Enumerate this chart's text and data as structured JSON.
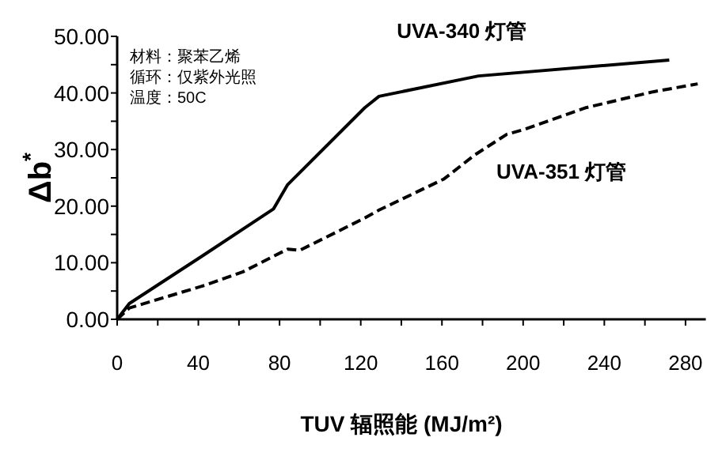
{
  "chart_data": {
    "type": "line",
    "xlabel": "TUV 辐照能 (MJ/m²)",
    "ylabel": "Δb$^{*}$",
    "annotations": [
      "材料：聚苯乙烯",
      "循环：仅紫外光照",
      "温度：50C"
    ],
    "xlim": [
      0,
      290
    ],
    "ylim": [
      0,
      50
    ],
    "xticks": [
      0,
      {
        "value": 20,
        "label": null
      },
      40,
      {
        "value": 60,
        "label": null
      },
      80,
      {
        "value": 100,
        "label": null
      },
      120,
      {
        "value": 140,
        "label": null
      },
      160,
      {
        "value": 180,
        "label": null
      },
      200,
      {
        "value": 220,
        "label": null
      },
      240,
      {
        "value": 260,
        "label": null
      },
      280
    ],
    "yticks": [
      {
        "value": 0,
        "label": "0.00"
      },
      {
        "value": 5,
        "label": null
      },
      {
        "value": 10,
        "label": "10.00"
      },
      {
        "value": 15,
        "label": null
      },
      {
        "value": 20,
        "label": "20.00"
      },
      {
        "value": 25,
        "label": null
      },
      {
        "value": 30,
        "label": "30.00"
      },
      {
        "value": 35,
        "label": null
      },
      {
        "value": 40,
        "label": "40.00"
      },
      {
        "value": 45,
        "label": null
      },
      {
        "value": 50,
        "label": "50.00"
      }
    ],
    "series": [
      {
        "name": "UVA-340 灯管",
        "color": "#000000",
        "line_style": "solid",
        "x": [
          0,
          6,
          42,
          77,
          84,
          122,
          129,
          178,
          272
        ],
        "values": [
          0,
          2.8,
          11.2,
          19.5,
          23.8,
          37.4,
          39.4,
          43,
          45.8
        ]
      },
      {
        "name": "UVA-351 灯管",
        "color": "#000000",
        "line_style": "dashed",
        "x": [
          0,
          6,
          44,
          62,
          84,
          90,
          122,
          129,
          161,
          176,
          192,
          200,
          231,
          264,
          286
        ],
        "values": [
          0,
          2,
          6.1,
          8.4,
          12.4,
          12.2,
          17.9,
          19.3,
          24.8,
          29,
          32.7,
          33.5,
          37.4,
          40.2,
          41.6
        ]
      }
    ]
  }
}
